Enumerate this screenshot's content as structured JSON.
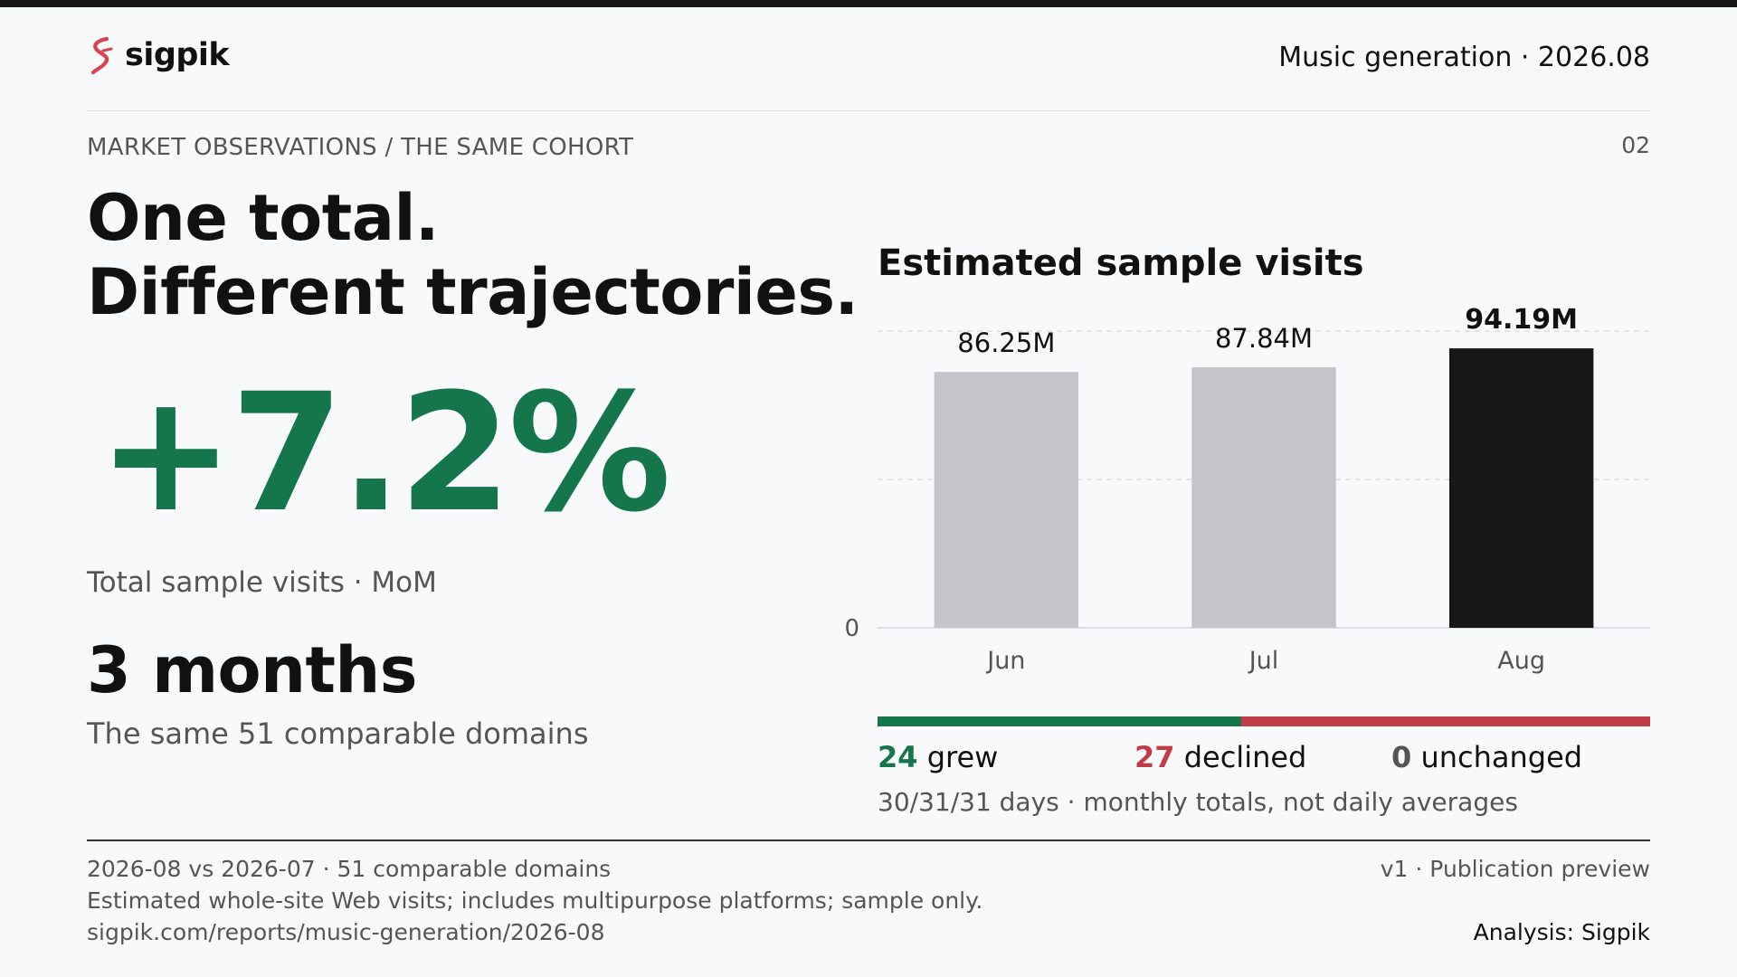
{
  "brand": {
    "name": "sigpik",
    "accent": "#d9434f"
  },
  "header": {
    "right": "Music generation · 2026.08"
  },
  "section": {
    "kicker": "MARKET OBSERVATIONS / THE SAME COHORT",
    "page": "02"
  },
  "headline": {
    "line1": "One total.",
    "line2": "Different trajectories."
  },
  "metric": {
    "value": "+7.2%",
    "label": "Total sample visits · MoM",
    "color": "#14764a"
  },
  "period": {
    "value": "3 months",
    "sub": "The same 51 comparable domains"
  },
  "chart_data": {
    "type": "bar",
    "title": "Estimated sample visits",
    "categories": [
      "Jun",
      "Jul",
      "Aug"
    ],
    "values": [
      86.25,
      87.84,
      94.19
    ],
    "value_labels": [
      "86.25M",
      "87.84M",
      "94.19M"
    ],
    "unit": "M",
    "ylim": [
      0,
      100
    ],
    "y_tick_labels": [
      "0"
    ],
    "gridlines": [
      50,
      100
    ],
    "grid": true,
    "colors": [
      "#c4c5c9",
      "#c4c5c9",
      "#18181b"
    ],
    "highlight_index": 2
  },
  "split": {
    "grew": 24,
    "grew_label": "grew",
    "declined": 27,
    "declined_label": "declined",
    "unchanged": 0,
    "unchanged_label": "unchanged",
    "colors": {
      "grew": "#14764a",
      "declined": "#c23c47"
    }
  },
  "note": "30/31/31 days · monthly totals, not daily averages",
  "footer": {
    "line1": "2026-08 vs 2026-07 · 51 comparable domains",
    "line2": "Estimated whole-site Web visits; includes multipurpose platforms; sample only.",
    "line3": "sigpik.com/reports/music-generation/2026-08",
    "version": "v1 · Publication preview",
    "analysis": "Analysis: Sigpik"
  }
}
